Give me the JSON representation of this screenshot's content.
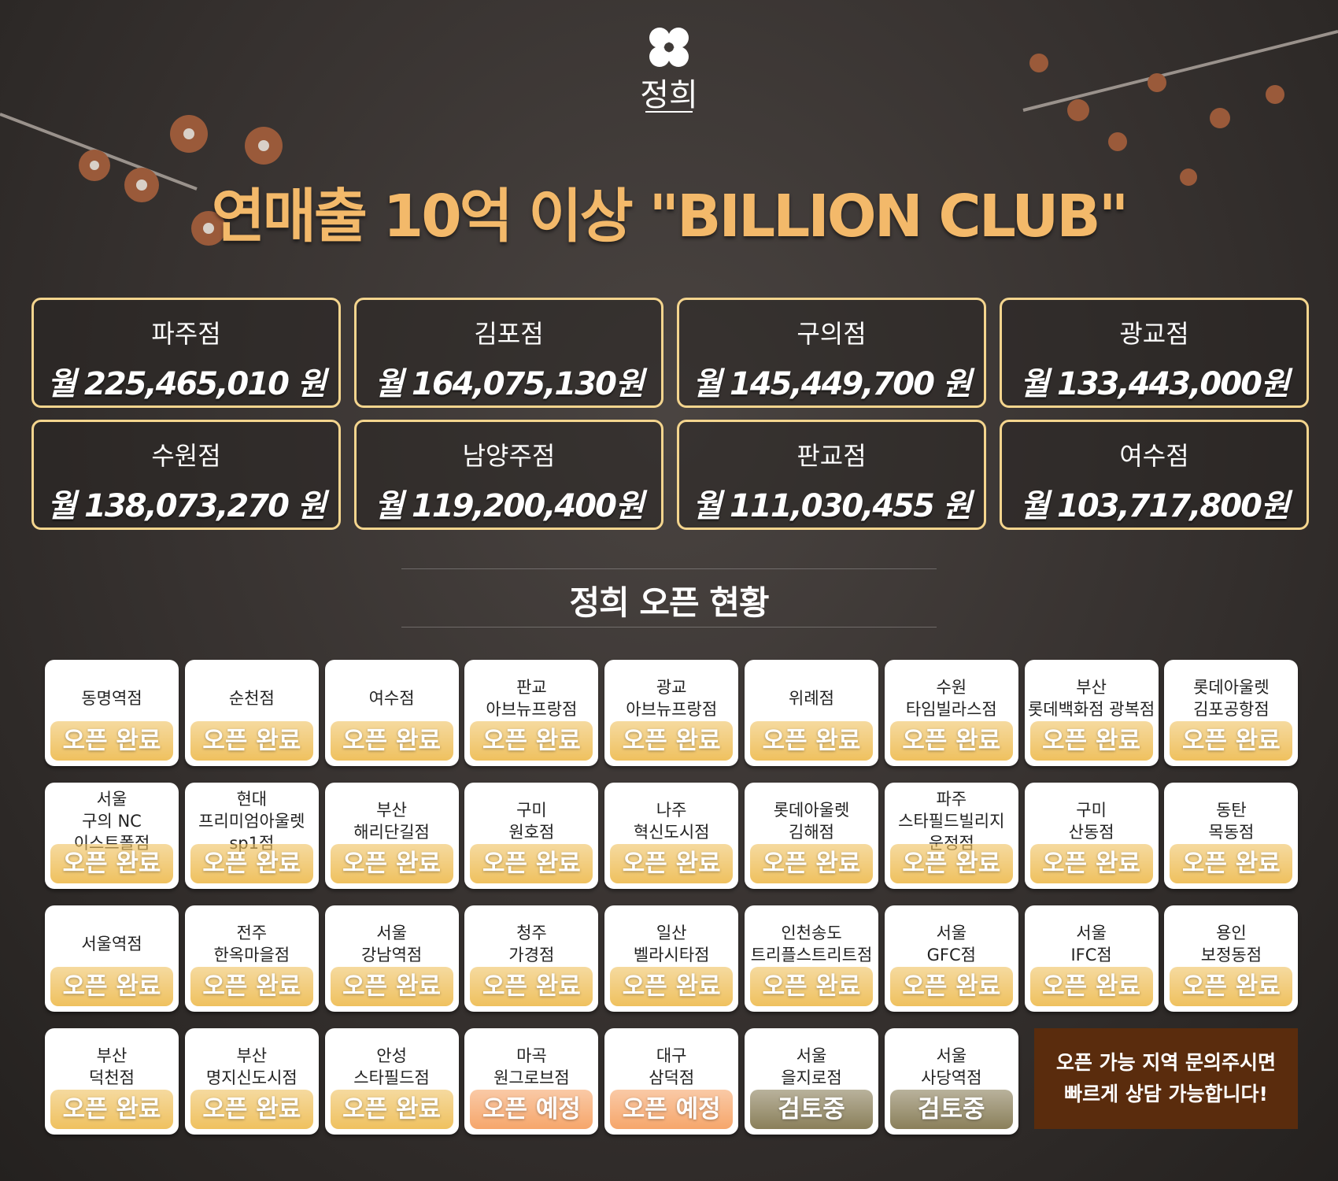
{
  "logo": "정희",
  "title": "연매출 10억 이상 \"BILLION CLUB\"",
  "revenue": [
    {
      "name": "파주점",
      "amount": "월 225,465,010 원"
    },
    {
      "name": "김포점",
      "amount": "월 164,075,130원"
    },
    {
      "name": "구의점",
      "amount": "월 145,449,700 원"
    },
    {
      "name": "광교점",
      "amount": "월 133,443,000원"
    },
    {
      "name": "수원점",
      "amount": "월 138,073,270 원"
    },
    {
      "name": "남양주점",
      "amount": "월 119,200,400원"
    },
    {
      "name": "판교점",
      "amount": "월 111,030,455 원"
    },
    {
      "name": "여수점",
      "amount": "월 103,717,800원"
    }
  ],
  "section_title": "정희 오픈 현황",
  "stores": [
    {
      "lines": [
        "동명역점"
      ],
      "status": "오픈 완료",
      "color": "#efc15f"
    },
    {
      "lines": [
        "순천점"
      ],
      "status": "오픈 완료",
      "color": "#efc15f"
    },
    {
      "lines": [
        "여수점"
      ],
      "status": "오픈 완료",
      "color": "#efc15f"
    },
    {
      "lines": [
        "판교",
        "아브뉴프랑점"
      ],
      "status": "오픈 완료",
      "color": "#efc15f"
    },
    {
      "lines": [
        "광교",
        "아브뉴프랑점"
      ],
      "status": "오픈 완료",
      "color": "#efc15f"
    },
    {
      "lines": [
        "위례점"
      ],
      "status": "오픈 완료",
      "color": "#efc15f"
    },
    {
      "lines": [
        "수원",
        "타임빌라스점"
      ],
      "status": "오픈 완료",
      "color": "#efc15f"
    },
    {
      "lines": [
        "부산",
        "롯데백화점 광복점"
      ],
      "status": "오픈 완료",
      "color": "#efc15f"
    },
    {
      "lines": [
        "롯데아울렛",
        "김포공항점"
      ],
      "status": "오픈 완료",
      "color": "#efc15f"
    },
    {
      "lines": [
        "서울",
        "구의 NC",
        "이스트폴점"
      ],
      "status": "오픈 완료",
      "color": "#efc15f"
    },
    {
      "lines": [
        "현대",
        "프리미엄아울렛",
        "sp1점"
      ],
      "status": "오픈 완료",
      "color": "#efc15f"
    },
    {
      "lines": [
        "부산",
        "해리단길점"
      ],
      "status": "오픈 완료",
      "color": "#efc15f"
    },
    {
      "lines": [
        "구미",
        "원호점"
      ],
      "status": "오픈 완료",
      "color": "#efc15f"
    },
    {
      "lines": [
        "나주",
        "혁신도시점"
      ],
      "status": "오픈 완료",
      "color": "#efc15f"
    },
    {
      "lines": [
        "롯데아울렛",
        "김해점"
      ],
      "status": "오픈 완료",
      "color": "#efc15f"
    },
    {
      "lines": [
        "파주",
        "스타필드빌리지",
        "운정점"
      ],
      "status": "오픈 완료",
      "color": "#efc15f"
    },
    {
      "lines": [
        "구미",
        "산동점"
      ],
      "status": "오픈 완료",
      "color": "#efc15f"
    },
    {
      "lines": [
        "동탄",
        "목동점"
      ],
      "status": "오픈 완료",
      "color": "#efc15f"
    },
    {
      "lines": [
        "서울역점"
      ],
      "status": "오픈 완료",
      "color": "#efc15f"
    },
    {
      "lines": [
        "전주",
        "한옥마을점"
      ],
      "status": "오픈 완료",
      "color": "#efc15f"
    },
    {
      "lines": [
        "서울",
        "강남역점"
      ],
      "status": "오픈 완료",
      "color": "#efc15f"
    },
    {
      "lines": [
        "청주",
        "가경점"
      ],
      "status": "오픈 완료",
      "color": "#efc15f"
    },
    {
      "lines": [
        "일산",
        "벨라시타점"
      ],
      "status": "오픈 완료",
      "color": "#efc15f"
    },
    {
      "lines": [
        "인천송도",
        "트리플스트리트점"
      ],
      "status": "오픈 완료",
      "color": "#efc15f"
    },
    {
      "lines": [
        "서울",
        "GFC점"
      ],
      "status": "오픈 완료",
      "color": "#efc15f"
    },
    {
      "lines": [
        "서울",
        "IFC점"
      ],
      "status": "오픈 완료",
      "color": "#efc15f"
    },
    {
      "lines": [
        "용인",
        "보정동점"
      ],
      "status": "오픈 완료",
      "color": "#efc15f"
    },
    {
      "lines": [
        "부산",
        "덕천점"
      ],
      "status": "오픈 완료",
      "color": "#efc15f"
    },
    {
      "lines": [
        "부산",
        "명지신도시점"
      ],
      "status": "오픈 완료",
      "color": "#efc15f"
    },
    {
      "lines": [
        "안성",
        "스타필드점"
      ],
      "status": "오픈 완료",
      "color": "#efc15f"
    },
    {
      "lines": [
        "마곡",
        "원그로브점"
      ],
      "status": "오픈 예정",
      "color": "#f6a66b"
    },
    {
      "lines": [
        "대구",
        "삼덕점"
      ],
      "status": "오픈 예정",
      "color": "#f6a66b"
    },
    {
      "lines": [
        "서울",
        "을지로점"
      ],
      "status": "검토중",
      "color": "#8a7f5a"
    },
    {
      "lines": [
        "서울",
        "사당역점"
      ],
      "status": "검토중",
      "color": "#8a7f5a"
    }
  ],
  "cta": [
    "오픈 가능 지역 문의주시면",
    "빠르게 상담 가능합니다!"
  ]
}
